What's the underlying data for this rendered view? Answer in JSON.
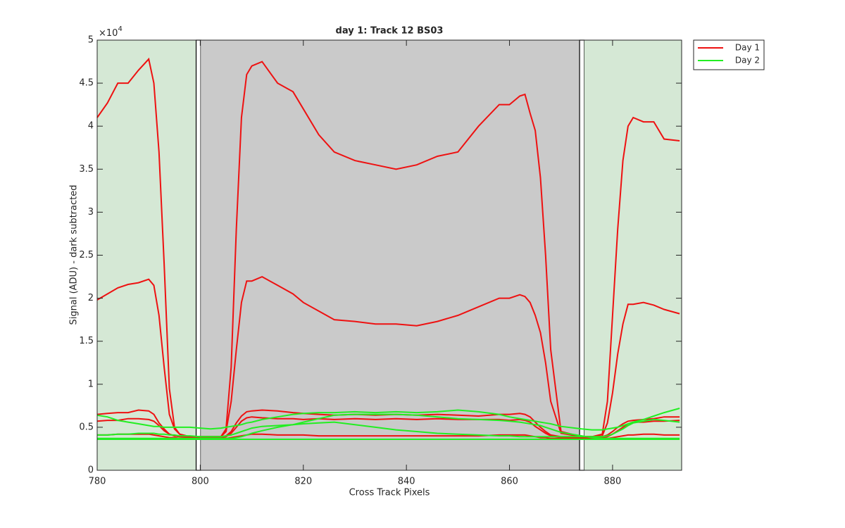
{
  "chart_data": {
    "type": "line",
    "title": "day 1: Track 12  BS03",
    "x_label": "Cross Track Pixels",
    "y_label": "Signal (ADU) - dark subtracted",
    "y_exponent": {
      "base": "×10",
      "power": "4"
    },
    "xlim": [
      780,
      893.4
    ],
    "ylim": [
      0,
      50000
    ],
    "xticks": [
      780,
      800,
      820,
      840,
      860,
      880
    ],
    "yticks": [
      0,
      {
        "value": 5000,
        "label": "0.5"
      },
      {
        "value": 10000,
        "label": "1"
      },
      {
        "value": 15000,
        "label": "1.5"
      },
      {
        "value": 20000,
        "label": "2"
      },
      {
        "value": 25000,
        "label": "2.5"
      },
      {
        "value": 30000,
        "label": "3"
      },
      {
        "value": 35000,
        "label": "3.5"
      },
      {
        "value": 40000,
        "label": "4"
      },
      {
        "value": 45000,
        "label": "4.5"
      },
      {
        "value": 50000,
        "label": "5"
      }
    ],
    "legend": "outside-top-right",
    "regions": [
      {
        "x0": 780,
        "x1": 799.2,
        "fill": "#d5e8d5",
        "stroke": "none"
      },
      {
        "x0": 799.2,
        "x1": 800.1,
        "fill": "#ffffff",
        "stroke": "#000000"
      },
      {
        "x0": 800.1,
        "x1": 873.6,
        "fill": "#cacaca",
        "stroke": "none"
      },
      {
        "x0": 873.6,
        "x1": 874.5,
        "fill": "#ffffff",
        "stroke": "#000000"
      },
      {
        "x0": 874.5,
        "x1": 893.4,
        "fill": "#d5e8d5",
        "stroke": "none"
      }
    ],
    "x": [
      780,
      782,
      784,
      786,
      788,
      790,
      791,
      792,
      793,
      794,
      795,
      796,
      798,
      800,
      802,
      804,
      805,
      806,
      807,
      808,
      809,
      810,
      812,
      815,
      818,
      820,
      823,
      826,
      830,
      834,
      838,
      842,
      846,
      850,
      854,
      858,
      860,
      862,
      863,
      864,
      865,
      866,
      867,
      868,
      870,
      874,
      876,
      878,
      879,
      880,
      881,
      882,
      883,
      884,
      886,
      888,
      890,
      893
    ],
    "series": [
      {
        "name": "Day 1",
        "color": "#ee1111",
        "lines": [
          [
            41000,
            42700,
            45000,
            45000,
            46500,
            47800,
            45000,
            37000,
            24000,
            9500,
            5000,
            4200,
            3900,
            3900,
            3900,
            3900,
            4800,
            12000,
            28000,
            41000,
            46000,
            47000,
            47500,
            45000,
            44000,
            42000,
            39000,
            37000,
            36000,
            35500,
            35000,
            35500,
            36500,
            37000,
            40000,
            42500,
            42500,
            43500,
            43700,
            41500,
            39500,
            34000,
            25000,
            14000,
            4500,
            3900,
            3900,
            4200,
            8000,
            18000,
            28000,
            36000,
            40000,
            41000,
            40500,
            40500,
            38500,
            38300
          ],
          [
            19800,
            20500,
            21200,
            21600,
            21800,
            22200,
            21500,
            18000,
            12000,
            6500,
            4800,
            4200,
            3900,
            3900,
            3900,
            3900,
            4500,
            8000,
            14000,
            19500,
            22000,
            22000,
            22500,
            21500,
            20500,
            19500,
            18500,
            17500,
            17300,
            17000,
            17000,
            16800,
            17300,
            18000,
            19000,
            20000,
            20000,
            20400,
            20200,
            19500,
            18000,
            16000,
            12500,
            8000,
            4300,
            3900,
            3900,
            4000,
            5500,
            9000,
            13500,
            17000,
            19300,
            19300,
            19500,
            19200,
            18700,
            18200
          ],
          [
            6500,
            6600,
            6700,
            6700,
            7000,
            6900,
            6500,
            5500,
            4800,
            4200,
            4000,
            3900,
            3900,
            3900,
            3900,
            3900,
            4000,
            4500,
            5500,
            6300,
            6800,
            6900,
            7000,
            6900,
            6700,
            6600,
            6500,
            6400,
            6500,
            6400,
            6500,
            6400,
            6500,
            6400,
            6300,
            6500,
            6500,
            6600,
            6500,
            6200,
            5600,
            5000,
            4500,
            4100,
            3900,
            3900,
            3900,
            3900,
            4100,
            4500,
            5000,
            5400,
            5700,
            5800,
            5900,
            6000,
            6200,
            6200
          ],
          [
            5700,
            5800,
            5800,
            6000,
            6000,
            5900,
            5700,
            5200,
            4600,
            4200,
            4000,
            3900,
            3800,
            3800,
            3800,
            3800,
            3900,
            4300,
            5000,
            5700,
            6100,
            6200,
            6100,
            6000,
            6000,
            5900,
            6000,
            5900,
            6000,
            5900,
            6000,
            5900,
            6000,
            5900,
            5900,
            5900,
            5800,
            5900,
            5800,
            5600,
            5100,
            4700,
            4300,
            4000,
            3800,
            3800,
            3800,
            3800,
            3900,
            4200,
            4600,
            5000,
            5400,
            5600,
            5600,
            5700,
            5700,
            5800
          ],
          [
            4100,
            4100,
            4200,
            4200,
            4200,
            4200,
            4100,
            4000,
            3900,
            3800,
            3800,
            3700,
            3700,
            3700,
            3700,
            3700,
            3700,
            3800,
            3900,
            4000,
            4100,
            4200,
            4200,
            4100,
            4100,
            4100,
            4000,
            4000,
            4000,
            4000,
            4000,
            4000,
            4000,
            4000,
            4000,
            4100,
            4100,
            4100,
            4100,
            4000,
            3900,
            3800,
            3800,
            3700,
            3700,
            3700,
            3700,
            3700,
            3700,
            3800,
            3900,
            4000,
            4100,
            4100,
            4200,
            4200,
            4100,
            4100
          ]
        ]
      },
      {
        "name": "Day 2",
        "color": "#22ee22",
        "lines": [
          [
            6400,
            6200,
            5800,
            5600,
            5400,
            5200,
            5100,
            5100,
            5000,
            5000,
            5000,
            5000,
            5000,
            4900,
            4800,
            4900,
            5000,
            5100,
            5200,
            5300,
            5500,
            5600,
            5900,
            6200,
            6500,
            6600,
            6700,
            6700,
            6800,
            6700,
            6800,
            6700,
            6800,
            7000,
            6800,
            6500,
            6200,
            6000,
            5900,
            5800,
            5700,
            5600,
            5500,
            5400,
            5100,
            4800,
            4700,
            4700,
            4800,
            4900,
            5000,
            5200,
            5400,
            5600,
            5900,
            6300,
            6700,
            7200
          ],
          [
            4100,
            4100,
            4200,
            4200,
            4300,
            4300,
            4300,
            4200,
            4200,
            4100,
            4100,
            4000,
            4000,
            3900,
            3900,
            3900,
            4000,
            4100,
            4300,
            4500,
            4700,
            4900,
            5100,
            5200,
            5300,
            5400,
            5500,
            5600,
            5300,
            5000,
            4700,
            4500,
            4300,
            4200,
            4100,
            4000,
            4000,
            3900,
            3900,
            3900,
            3900,
            3900,
            3900,
            3900,
            3900,
            3900,
            3900,
            3900,
            4000,
            4200,
            4500,
            4800,
            5200,
            5500,
            5700,
            5900,
            5800,
            5600
          ],
          [
            3700,
            3700,
            3700,
            3700,
            3700,
            3700,
            3700,
            3700,
            3700,
            3700,
            3700,
            3700,
            3700,
            3700,
            3700,
            3700,
            3700,
            3700,
            3800,
            3900,
            4100,
            4300,
            4600,
            5000,
            5300,
            5600,
            6000,
            6400,
            6500,
            6500,
            6500,
            6400,
            6200,
            6000,
            5900,
            5800,
            5700,
            5600,
            5500,
            5400,
            5300,
            5200,
            5000,
            4800,
            4400,
            4000,
            3800,
            3700,
            3700,
            3700,
            3700,
            3700,
            3700,
            3700,
            3700,
            3700,
            3700,
            3700
          ],
          [
            3600,
            3600,
            3600,
            3600,
            3600,
            3600,
            3600,
            3600,
            3600,
            3600,
            3600,
            3600,
            3600,
            3600,
            3600,
            3600,
            3600,
            3600,
            3600,
            3600,
            3600,
            3600,
            3600,
            3600,
            3600,
            3600,
            3600,
            3600,
            3600,
            3600,
            3600,
            3600,
            3600,
            3600,
            3600,
            3600,
            3600,
            3600,
            3600,
            3600,
            3600,
            3600,
            3600,
            3600,
            3600,
            3600,
            3600,
            3600,
            3600,
            3600,
            3600,
            3600,
            3600,
            3600,
            3600,
            3600,
            3600,
            3600
          ]
        ]
      }
    ]
  }
}
